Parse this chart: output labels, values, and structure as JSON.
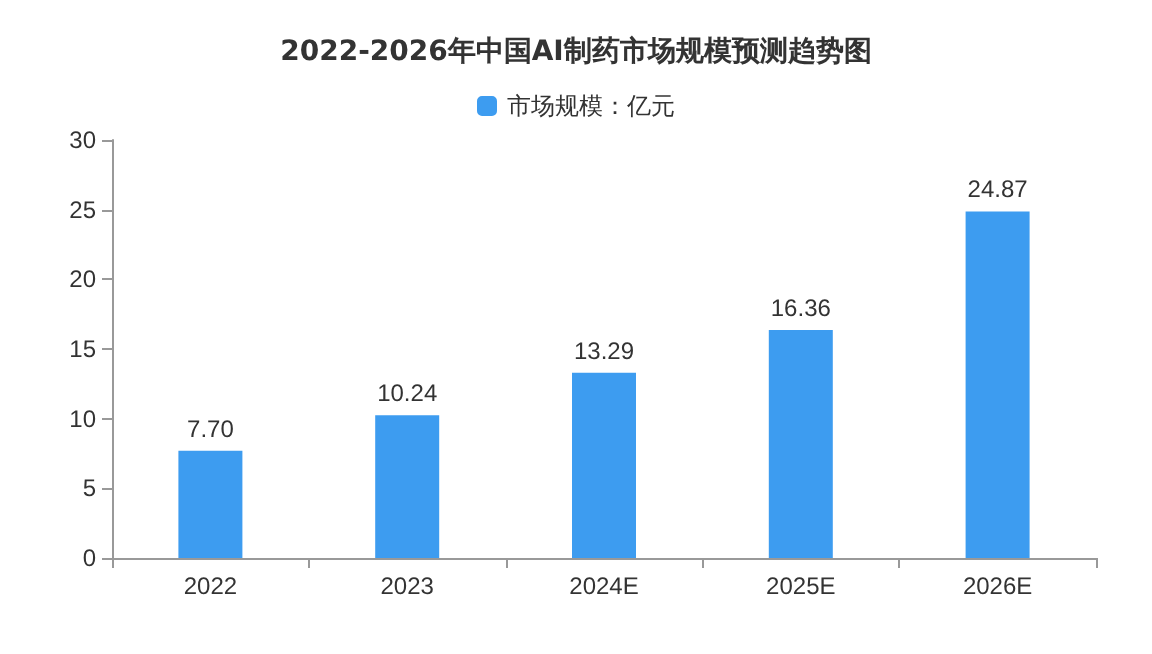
{
  "chart_data": {
    "type": "bar",
    "title": "2022-2026年中国AI制药市场规模预测趋势图",
    "categories": [
      "2022",
      "2023",
      "2024E",
      "2025E",
      "2026E"
    ],
    "series": [
      {
        "name": "市场规模：亿元",
        "color": "#3d9cf0",
        "values": [
          7.7,
          10.24,
          13.29,
          16.36,
          24.87
        ]
      }
    ],
    "value_labels": [
      "7.70",
      "10.24",
      "13.29",
      "16.36",
      "24.87"
    ],
    "ylim": [
      0,
      30
    ],
    "yticks": [
      0,
      5,
      10,
      15,
      20,
      25,
      30
    ],
    "grid": false,
    "legend": "top"
  }
}
